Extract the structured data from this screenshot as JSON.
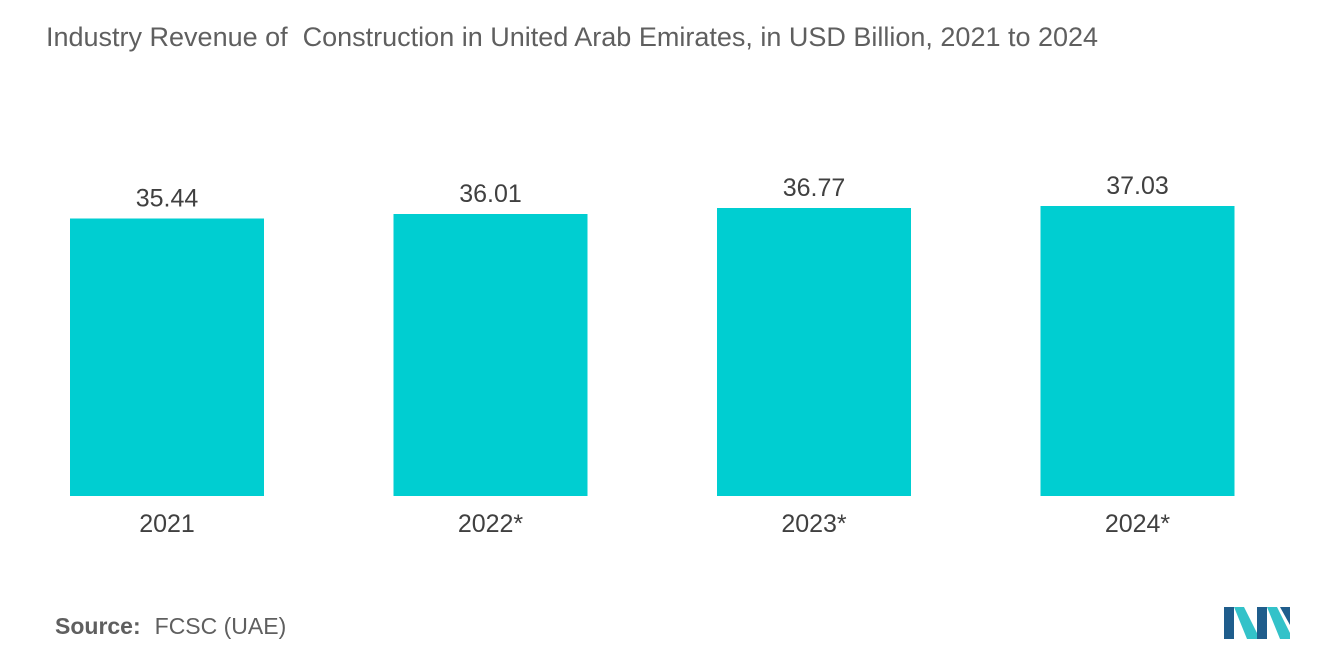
{
  "title": "Industry Revenue of  Construction in United Arab Emirates, in USD Billion, 2021 to 2024",
  "source": {
    "label": "Source:",
    "text": "FCSC (UAE)"
  },
  "colors": {
    "bar": "#00ced1",
    "logo_dark": "#1f5d8c",
    "logo_light": "#33c2c9"
  },
  "logo_icon": "mordor-intelligence-logo",
  "chart_data": {
    "type": "bar",
    "categories": [
      "2021",
      "2022*",
      "2023*",
      "2024*"
    ],
    "values": [
      35.44,
      36.01,
      36.77,
      37.03
    ],
    "value_labels": [
      "35.44",
      "36.01",
      "36.77",
      "37.03"
    ],
    "title": "Industry Revenue of  Construction in United Arab Emirates, in USD Billion, 2021 to 2024",
    "xlabel": "",
    "ylabel": "",
    "ylim": [
      0,
      37.03
    ],
    "grid": false,
    "legend": "none"
  }
}
